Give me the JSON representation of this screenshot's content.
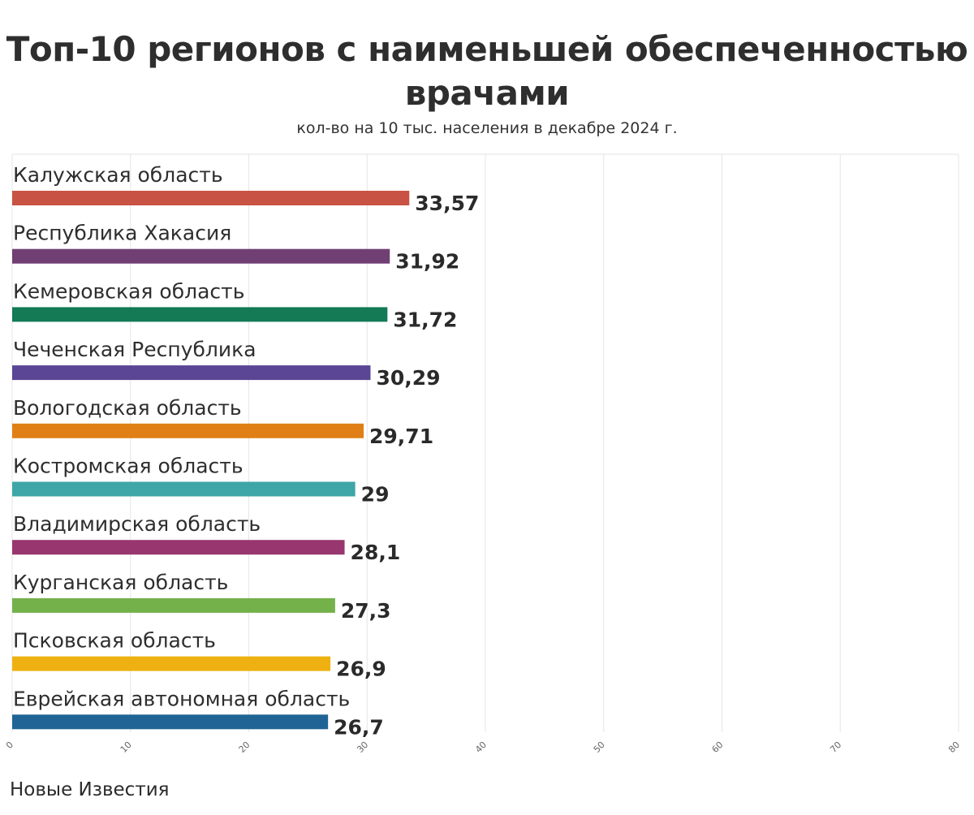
{
  "chart_data": {
    "type": "bar",
    "orientation": "horizontal",
    "title": "Топ-10 регионов с наименьшей обеспеченностью врачами",
    "subtitle": "кол-во на 10 тыс. населения в декабре 2024 г.",
    "categories": [
      "Калужская область",
      "Республика Хакасия",
      "Кемеровская область",
      "Чеченская Республика",
      "Вологодская область",
      "Костромская область",
      "Владимирская область",
      "Курганская область",
      "Псковская область",
      "Еврейская автономная область"
    ],
    "values": [
      33.57,
      31.92,
      31.72,
      30.29,
      29.71,
      29,
      28.1,
      27.3,
      26.9,
      26.7
    ],
    "value_labels": [
      "33,57",
      "31,92",
      "31,72",
      "30,29",
      "29,71",
      "29",
      "28,1",
      "27,3",
      "26,9",
      "26,7"
    ],
    "colors": [
      "#c85244",
      "#703f73",
      "#137a55",
      "#5a4694",
      "#e07f16",
      "#3fa6a7",
      "#983670",
      "#74b14b",
      "#eeb111",
      "#1f6494"
    ],
    "xlim": [
      0,
      80
    ],
    "xticks": [
      0,
      10,
      20,
      30,
      40,
      50,
      60,
      70,
      80
    ],
    "grid": true,
    "legend": "none"
  },
  "footer": {
    "source": "Новые Известия"
  }
}
